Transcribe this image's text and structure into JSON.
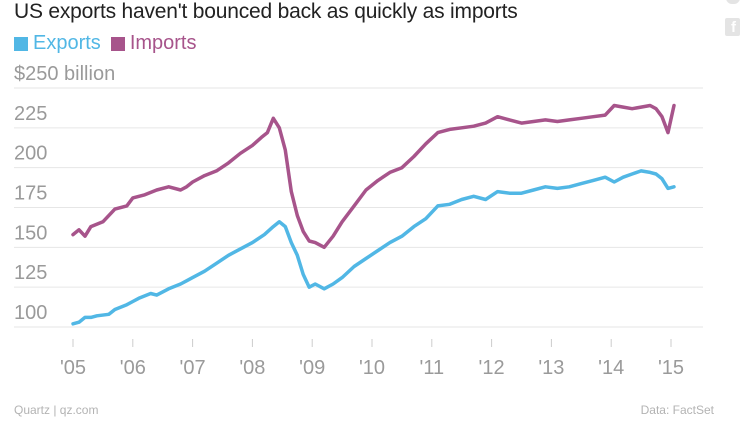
{
  "share": {
    "facebook_glyph": "f"
  },
  "colors": {
    "exports": "#51b7e5",
    "imports": "#a7548b",
    "grid": "#e6e6e6",
    "tick": "#9a9a9a"
  },
  "footer": {
    "source_left": "Quartz | qz.com",
    "source_right": "Data: FactSet"
  },
  "chart_data": {
    "type": "line",
    "title": "US exports haven't bounced back as quickly as imports",
    "xlabel": "",
    "ylabel": "",
    "ylim": [
      100,
      250
    ],
    "yticks": [
      100,
      125,
      150,
      175,
      200,
      225,
      250
    ],
    "ytick_labels": [
      "100",
      "125",
      "150",
      "175",
      "200",
      "225",
      "$250 billion"
    ],
    "xlim": [
      2004.9,
      2015.3
    ],
    "xticks": [
      2005,
      2006,
      2007,
      2008,
      2009,
      2010,
      2011,
      2012,
      2013,
      2014,
      2015
    ],
    "xtick_labels": [
      "'05",
      "'06",
      "'07",
      "'08",
      "'09",
      "'10",
      "'11",
      "'12",
      "'13",
      "'14",
      "'15"
    ],
    "grid": true,
    "legend": "top-left",
    "series": [
      {
        "name": "Exports",
        "x": [
          2005.0,
          2005.1,
          2005.2,
          2005.3,
          2005.4,
          2005.6,
          2005.7,
          2005.9,
          2006.0,
          2006.1,
          2006.3,
          2006.4,
          2006.6,
          2006.8,
          2006.9,
          2007.0,
          2007.2,
          2007.4,
          2007.6,
          2007.8,
          2008.0,
          2008.2,
          2008.35,
          2008.45,
          2008.55,
          2008.65,
          2008.75,
          2008.85,
          2008.95,
          2009.05,
          2009.2,
          2009.35,
          2009.5,
          2009.7,
          2009.9,
          2010.1,
          2010.3,
          2010.5,
          2010.7,
          2010.9,
          2011.1,
          2011.3,
          2011.5,
          2011.7,
          2011.9,
          2012.1,
          2012.3,
          2012.5,
          2012.7,
          2012.9,
          2013.1,
          2013.3,
          2013.5,
          2013.7,
          2013.9,
          2014.05,
          2014.2,
          2014.35,
          2014.5,
          2014.65,
          2014.75,
          2014.85,
          2014.95,
          2015.05
        ],
        "values": [
          102,
          103,
          106,
          106,
          107,
          108,
          111,
          114,
          116,
          118,
          121,
          120,
          124,
          127,
          129,
          131,
          135,
          140,
          145,
          149,
          153,
          158,
          163,
          166,
          163,
          153,
          145,
          133,
          125,
          127,
          124,
          127,
          131,
          138,
          143,
          148,
          153,
          157,
          163,
          168,
          176,
          177,
          180,
          182,
          180,
          185,
          184,
          184,
          186,
          188,
          187,
          188,
          190,
          192,
          194,
          191,
          194,
          196,
          198,
          197,
          196,
          193,
          187,
          188
        ]
      },
      {
        "name": "Imports",
        "x": [
          2005.0,
          2005.1,
          2005.2,
          2005.3,
          2005.5,
          2005.7,
          2005.9,
          2006.0,
          2006.2,
          2006.4,
          2006.6,
          2006.8,
          2006.9,
          2007.0,
          2007.2,
          2007.4,
          2007.6,
          2007.8,
          2008.0,
          2008.15,
          2008.25,
          2008.35,
          2008.45,
          2008.55,
          2008.65,
          2008.75,
          2008.85,
          2008.95,
          2009.05,
          2009.2,
          2009.35,
          2009.5,
          2009.7,
          2009.9,
          2010.1,
          2010.3,
          2010.5,
          2010.7,
          2010.9,
          2011.1,
          2011.3,
          2011.5,
          2011.7,
          2011.9,
          2012.1,
          2012.3,
          2012.5,
          2012.7,
          2012.9,
          2013.1,
          2013.3,
          2013.5,
          2013.7,
          2013.9,
          2014.05,
          2014.2,
          2014.35,
          2014.5,
          2014.65,
          2014.75,
          2014.85,
          2014.95,
          2015.05
        ],
        "values": [
          158,
          161,
          157,
          163,
          166,
          174,
          176,
          181,
          183,
          186,
          188,
          186,
          188,
          191,
          195,
          198,
          203,
          209,
          214,
          219,
          222,
          231,
          225,
          211,
          185,
          170,
          160,
          154,
          153,
          150,
          157,
          166,
          176,
          186,
          192,
          197,
          200,
          207,
          215,
          222,
          224,
          225,
          226,
          228,
          232,
          230,
          228,
          229,
          230,
          229,
          230,
          231,
          232,
          233,
          239,
          238,
          237,
          238,
          239,
          237,
          232,
          222,
          239
        ]
      }
    ]
  }
}
